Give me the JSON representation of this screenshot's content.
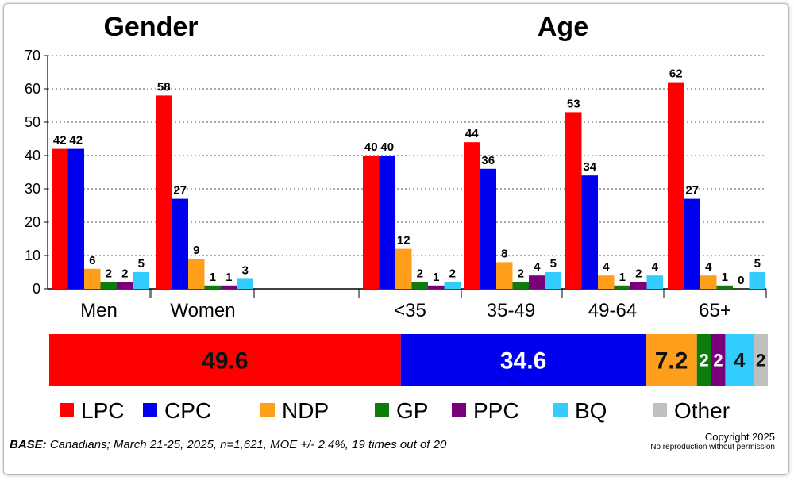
{
  "chart_data": {
    "type": "bar",
    "ylim": [
      0,
      70
    ],
    "yticks": [
      0,
      10,
      20,
      30,
      40,
      50,
      60,
      70
    ],
    "grid": true,
    "legend_position": "bottom",
    "headings": [
      "Gender",
      "Age"
    ],
    "series": [
      {
        "name": "LPC",
        "color": "#ff0000"
      },
      {
        "name": "CPC",
        "color": "#0000ee"
      },
      {
        "name": "NDP",
        "color": "#ff9e1b"
      },
      {
        "name": "GP",
        "color": "#0c7c0c"
      },
      {
        "name": "PPC",
        "color": "#7a007a"
      },
      {
        "name": "BQ",
        "color": "#33ccff"
      },
      {
        "name": "Other",
        "color": "#bfbfbf"
      }
    ],
    "groups": [
      {
        "category": "Men",
        "values": [
          42,
          42,
          6,
          2,
          2,
          5
        ],
        "labels": [
          "42",
          "42",
          "6",
          "2",
          "2",
          "5"
        ]
      },
      {
        "category": "Women",
        "values": [
          58,
          27,
          9,
          1,
          1,
          3
        ],
        "labels": [
          "58",
          "27",
          "9",
          "1",
          "1",
          "3"
        ]
      },
      {
        "category": "<35",
        "values": [
          40,
          40,
          12,
          2,
          1,
          2
        ],
        "labels": [
          "40",
          "40",
          "12",
          "2",
          "1",
          "2"
        ]
      },
      {
        "category": "35-49",
        "values": [
          44,
          36,
          8,
          2,
          4,
          5
        ],
        "labels": [
          "44",
          "36",
          "8",
          "2",
          "4",
          "5"
        ]
      },
      {
        "category": "49-64",
        "values": [
          53,
          34,
          4,
          1,
          2,
          4
        ],
        "labels": [
          "53",
          "34",
          "4",
          "1",
          "2",
          "4"
        ]
      },
      {
        "category": "65+",
        "values": [
          62,
          27,
          4,
          1,
          0,
          5
        ],
        "labels": [
          "62",
          "27",
          "4",
          "1",
          "0",
          "5"
        ]
      }
    ],
    "total_bar": {
      "values": [
        49.6,
        34.6,
        7.2,
        2,
        2,
        4,
        2
      ],
      "labels": [
        "49.6",
        "34.6",
        "7.2",
        "2",
        "2",
        "4",
        "2"
      ]
    }
  },
  "footer": {
    "base_label": "BASE:",
    "base_text": " Canadians; March 21-25, 2025, n=1,621, MOE +/- 2.4%, 19 times out of 20",
    "copyright_line1": "Copyright 2025",
    "copyright_line2": "No reproduction without permission"
  }
}
